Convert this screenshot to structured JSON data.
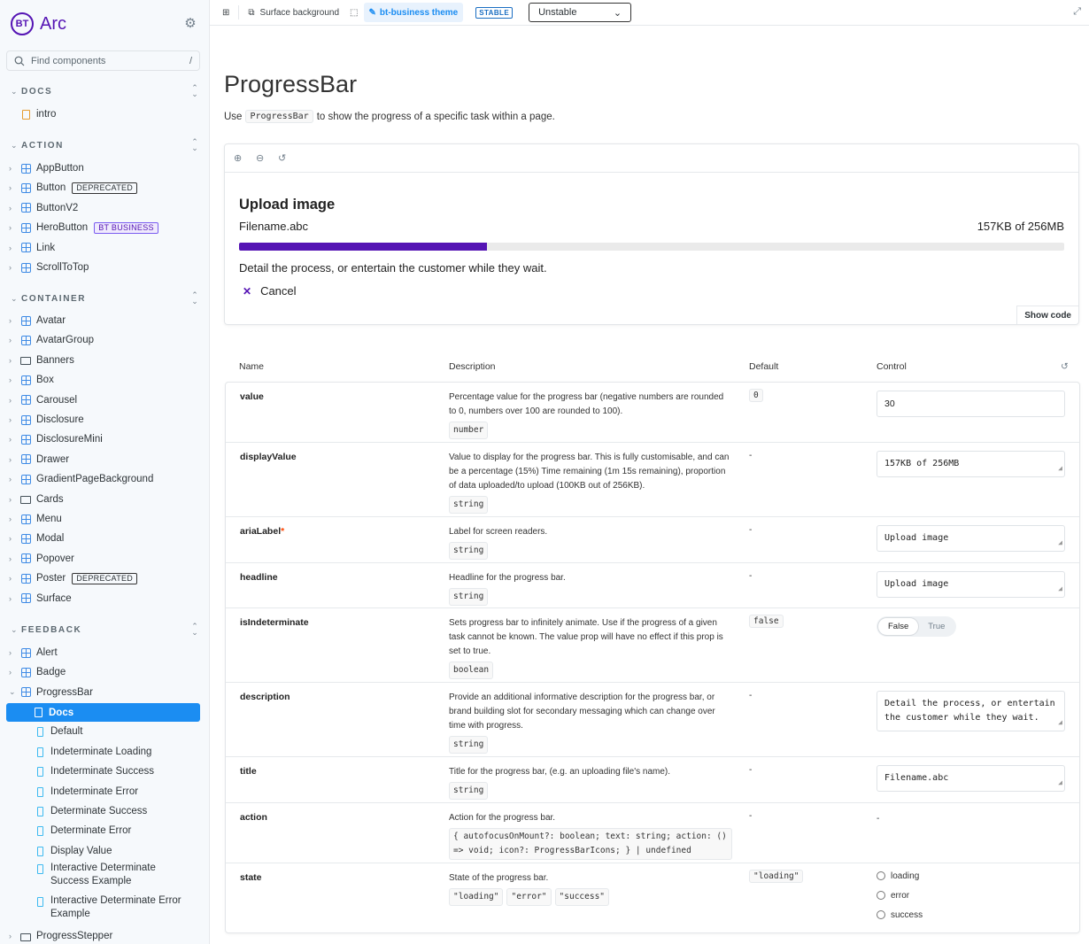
{
  "brand": {
    "logo": "BT",
    "name": "Arc"
  },
  "search": {
    "placeholder": "Find components",
    "shortcut": "/"
  },
  "sections": {
    "docs": "DOCS",
    "action": "ACTION",
    "container": "CONTAINER",
    "feedback": "FEEDBACK"
  },
  "nav": {
    "intro": "intro",
    "action": [
      {
        "label": "AppButton"
      },
      {
        "label": "Button",
        "tag": "DEPRECATED"
      },
      {
        "label": "ButtonV2"
      },
      {
        "label": "HeroButton",
        "tag": "BT BUSINESS"
      },
      {
        "label": "Link"
      },
      {
        "label": "ScrollToTop"
      }
    ],
    "container": [
      {
        "label": "Avatar"
      },
      {
        "label": "AvatarGroup"
      },
      {
        "label": "Banners"
      },
      {
        "label": "Box"
      },
      {
        "label": "Carousel"
      },
      {
        "label": "Disclosure"
      },
      {
        "label": "DisclosureMini"
      },
      {
        "label": "Drawer"
      },
      {
        "label": "GradientPageBackground"
      },
      {
        "label": "Cards"
      },
      {
        "label": "Menu"
      },
      {
        "label": "Modal"
      },
      {
        "label": "Popover"
      },
      {
        "label": "Poster",
        "tag": "DEPRECATED"
      },
      {
        "label": "Surface"
      }
    ],
    "feedback": [
      {
        "label": "Alert"
      },
      {
        "label": "Badge"
      },
      {
        "label": "ProgressBar"
      }
    ],
    "progress_sub": [
      "Docs",
      "Default",
      "Indeterminate Loading",
      "Indeterminate Success",
      "Indeterminate Error",
      "Determinate Success",
      "Determinate Error",
      "Display Value",
      "Interactive Determinate Success Example",
      "Interactive Determinate Error Example"
    ],
    "next": "ProgressStepper"
  },
  "topbar": {
    "surface": "Surface background",
    "theme": "bt-business theme",
    "stable": "STABLE",
    "select": "Unstable"
  },
  "page": {
    "title": "ProgressBar",
    "intro_pre": "Use",
    "intro_code": "ProgressBar",
    "intro_post": "to show the progress of a specific task within a page."
  },
  "preview": {
    "headline": "Upload image",
    "title": "Filename.abc",
    "displayValue": "157KB of 256MB",
    "progress": 30,
    "description": "Detail the process, or entertain the customer while they wait.",
    "cancel": "Cancel",
    "show_code": "Show code"
  },
  "colors": {
    "accent": "#5514b4",
    "selected": "#1b8df2"
  },
  "table": {
    "headers": {
      "name": "Name",
      "description": "Description",
      "default": "Default",
      "control": "Control"
    },
    "rows": [
      {
        "name": "value",
        "desc": "Percentage value for the progress bar (negative numbers are rounded to 0, numbers over 100 are rounded to 100).",
        "type": "number",
        "default": "0",
        "control": "30"
      },
      {
        "name": "displayValue",
        "desc": "Value to display for the progress bar. This is fully customisable, and can be a percentage (15%) Time remaining (1m 15s remaining), proportion of data uploaded/to upload (100KB out of 256KB).",
        "type": "string",
        "default": "-",
        "control": "157KB of 256MB"
      },
      {
        "name": "ariaLabel",
        "required": "*",
        "desc": "Label for screen readers.",
        "type": "string",
        "default": "-",
        "control": "Upload image"
      },
      {
        "name": "headline",
        "desc": "Headline for the progress bar.",
        "type": "string",
        "default": "-",
        "control": "Upload image"
      },
      {
        "name": "isIndeterminate",
        "desc": "Sets progress bar to infinitely animate. Use if the progress of a given task cannot be known. The value prop will have no effect if this prop is set to true.",
        "type": "boolean",
        "default": "false",
        "toggle": [
          "False",
          "True"
        ]
      },
      {
        "name": "description",
        "desc": "Provide an additional informative description for the progress bar, or brand building slot for secondary messaging which can change over time with progress.",
        "type": "string",
        "default": "-",
        "control": "Detail the process, or entertain the customer while they wait."
      },
      {
        "name": "title",
        "desc": "Title for the progress bar, (e.g. an uploading file's name).",
        "type": "string",
        "default": "-",
        "control": "Filename.abc"
      },
      {
        "name": "action",
        "desc": "Action for the progress bar.",
        "type": "{ autofocusOnMount?: boolean; text: string; action: () => void; icon?: ProgressBarIcons; } | undefined",
        "default": "-",
        "control": "-"
      },
      {
        "name": "state",
        "desc": "State of the progress bar.",
        "types": [
          "\"loading\"",
          "\"error\"",
          "\"success\""
        ],
        "default": "\"loading\"",
        "radios": [
          "loading",
          "error",
          "success"
        ]
      }
    ]
  }
}
